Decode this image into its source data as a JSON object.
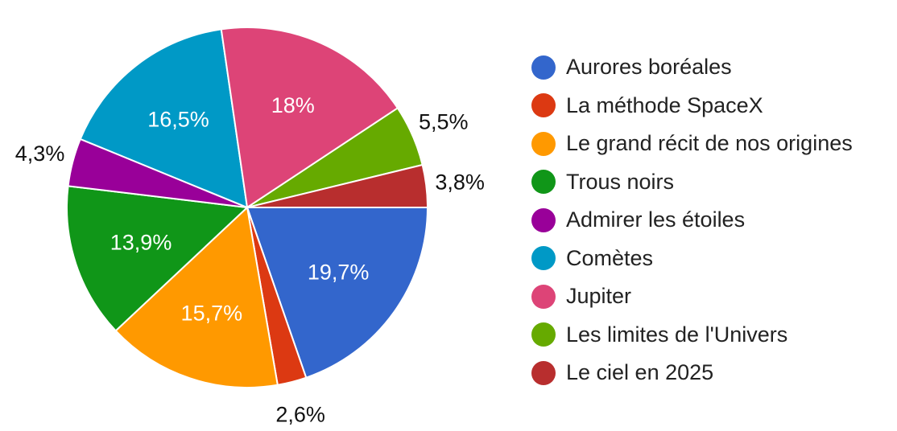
{
  "chart_data": {
    "type": "pie",
    "start_angle_deg": 90,
    "direction": "clockwise",
    "legend_position": "right",
    "slices": [
      {
        "label": "Aurores boréales",
        "value": 19.7,
        "value_label": "19,7%",
        "color": "#3366cc",
        "label_placement": "inside"
      },
      {
        "label": "La méthode SpaceX",
        "value": 2.6,
        "value_label": "2,6%",
        "color": "#dc3912",
        "label_placement": "outside"
      },
      {
        "label": "Le grand récit de nos origines",
        "value": 15.7,
        "value_label": "15,7%",
        "color": "#ff9900",
        "label_placement": "inside"
      },
      {
        "label": "Trous noirs",
        "value": 13.9,
        "value_label": "13,9%",
        "color": "#109618",
        "label_placement": "inside"
      },
      {
        "label": "Admirer les étoiles",
        "value": 4.3,
        "value_label": "4,3%",
        "color": "#990099",
        "label_placement": "outside"
      },
      {
        "label": "Comètes",
        "value": 16.5,
        "value_label": "16,5%",
        "color": "#0099c6",
        "label_placement": "inside"
      },
      {
        "label": "Jupiter",
        "value": 18,
        "value_label": "18%",
        "color": "#dd4477",
        "label_placement": "inside"
      },
      {
        "label": "Les limites de l'Univers",
        "value": 5.5,
        "value_label": "5,5%",
        "color": "#66aa00",
        "label_placement": "outside"
      },
      {
        "label": "Le ciel en 2025",
        "value": 3.8,
        "value_label": "3,8%",
        "color": "#b82e2e",
        "label_placement": "outside"
      }
    ]
  }
}
